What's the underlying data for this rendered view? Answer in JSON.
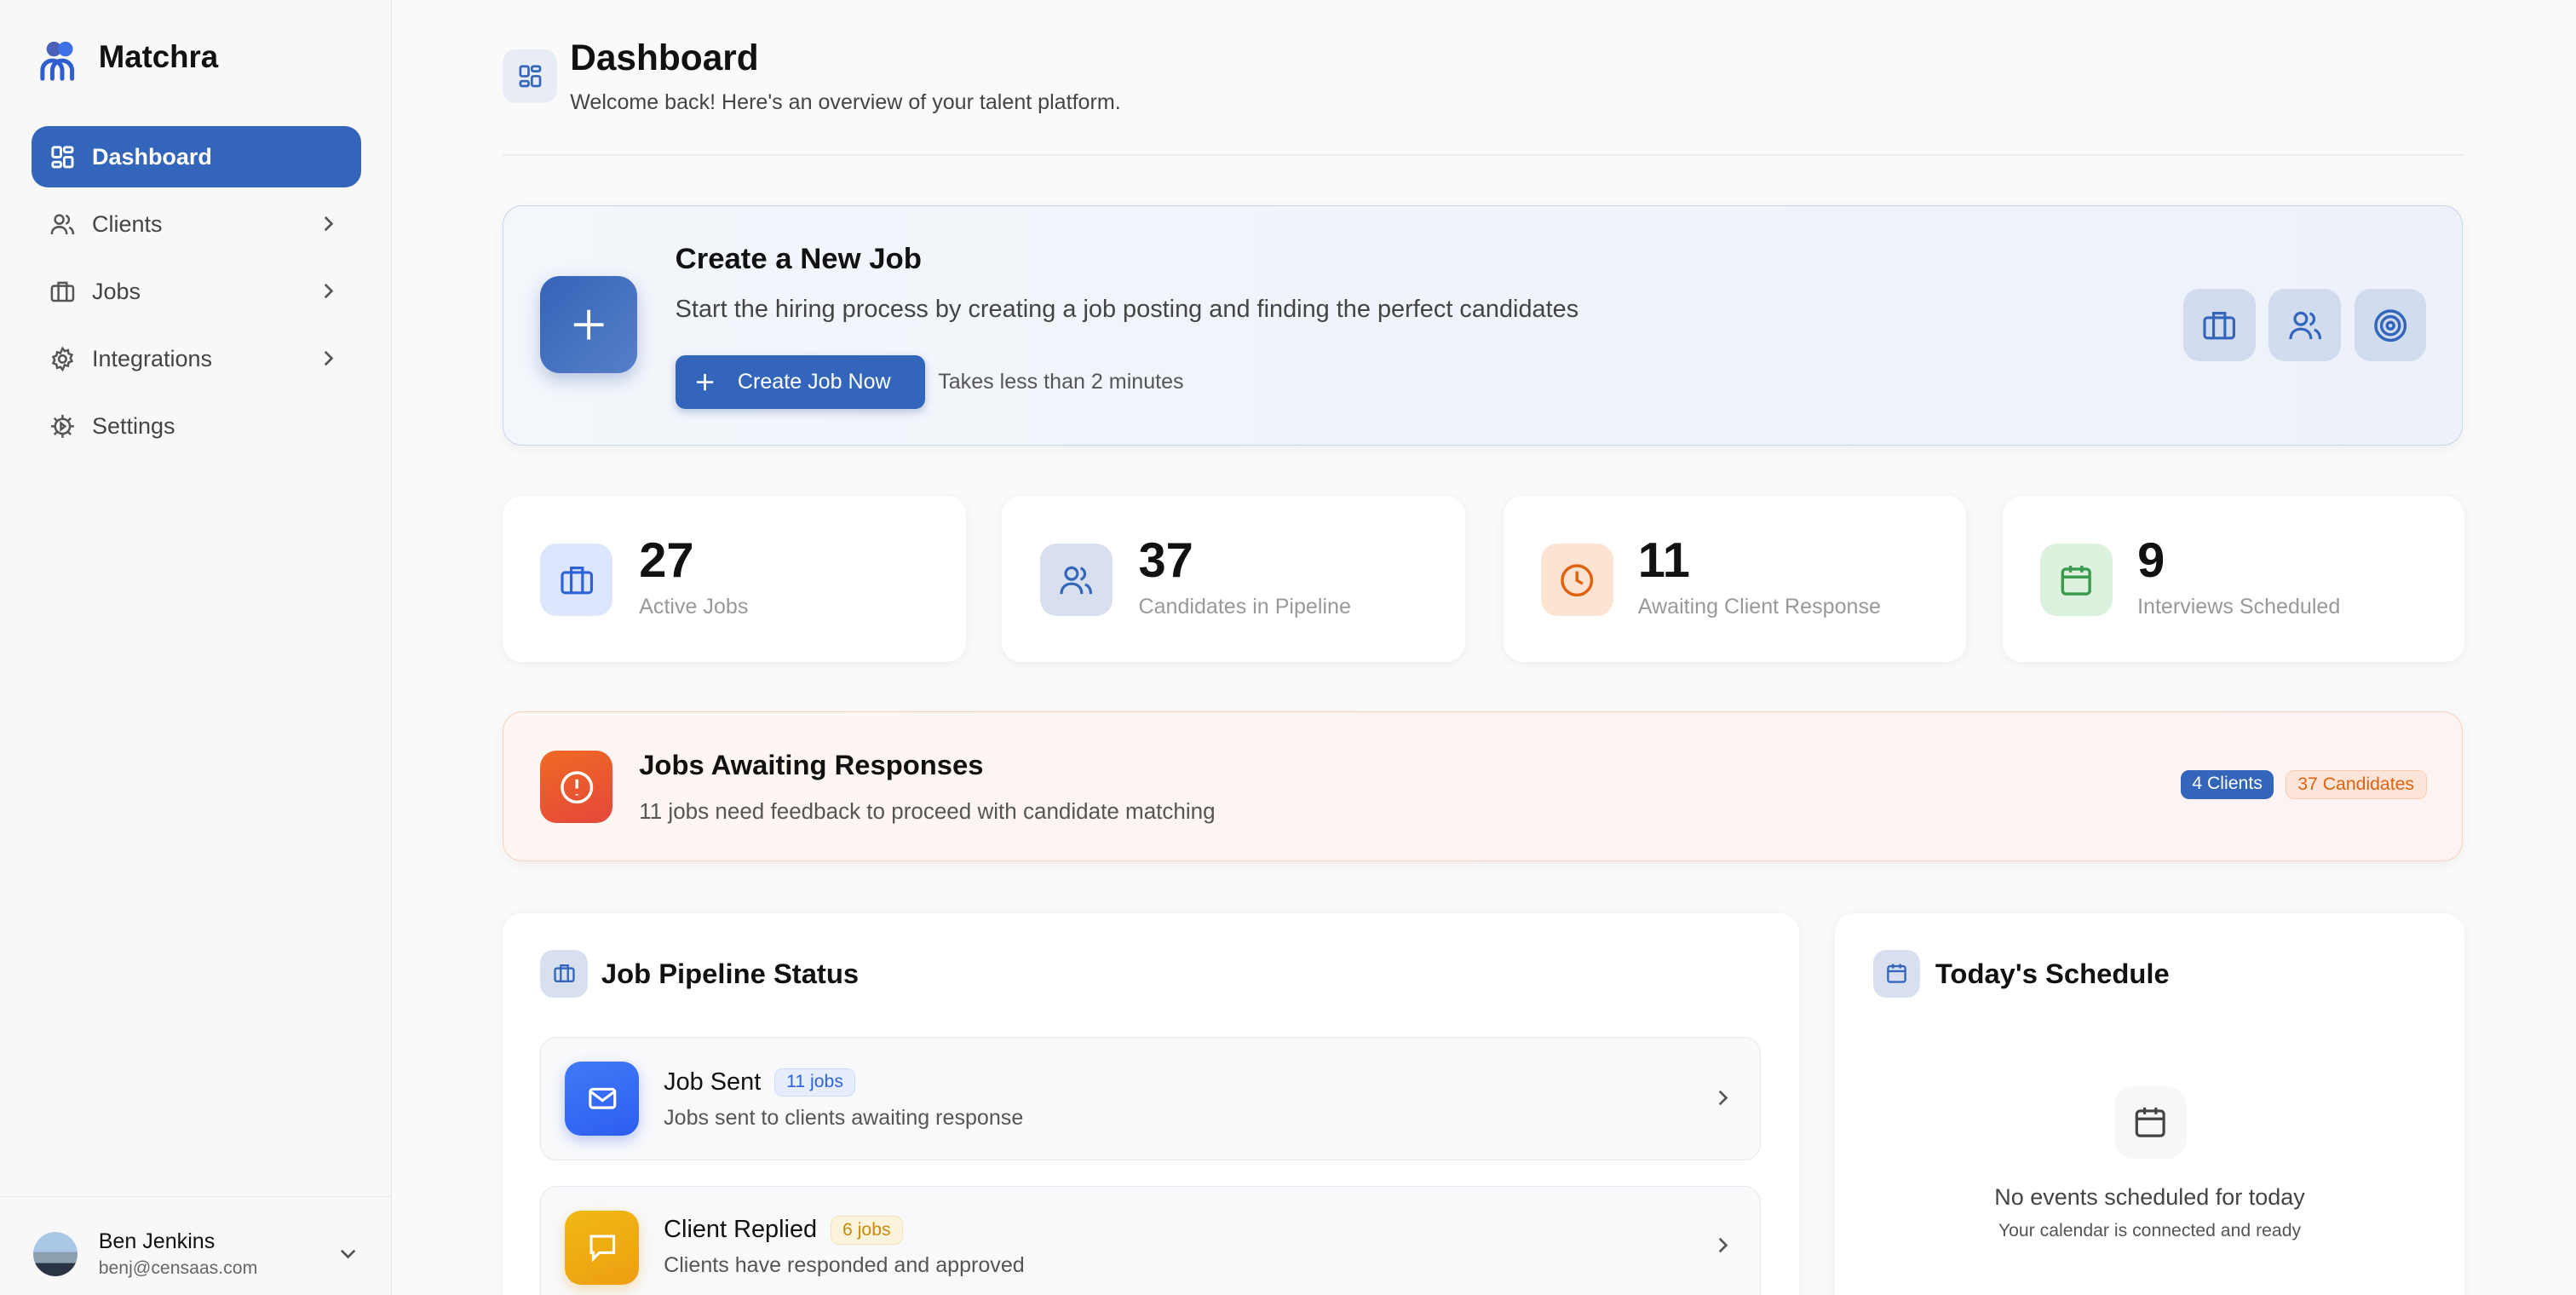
{
  "app": {
    "name": "Matchra"
  },
  "sidebar": {
    "items": [
      {
        "label": "Dashboard",
        "icon": "grid-icon",
        "active": true
      },
      {
        "label": "Clients",
        "icon": "users-icon",
        "has_submenu": true
      },
      {
        "label": "Jobs",
        "icon": "briefcase-icon",
        "has_submenu": true
      },
      {
        "label": "Integrations",
        "icon": "gear-icon",
        "has_submenu": true
      },
      {
        "label": "Settings",
        "icon": "settings-icon"
      }
    ]
  },
  "user": {
    "name": "Ben Jenkins",
    "email": "benj@censaas.com"
  },
  "header": {
    "title": "Dashboard",
    "subtitle": "Welcome back! Here's an overview of your talent platform."
  },
  "create_job": {
    "title": "Create a New Job",
    "description": "Start the hiring process by creating a job posting and finding the perfect candidates",
    "button": "Create Job Now",
    "hint": "Takes less than 2 minutes"
  },
  "stats": [
    {
      "value": "27",
      "label": "Active Jobs",
      "color": "#2f62d9"
    },
    {
      "value": "37",
      "label": "Candidates in Pipeline",
      "color": "#3366bb"
    },
    {
      "value": "11",
      "label": "Awaiting Client Response",
      "color": "#e0620e"
    },
    {
      "value": "9",
      "label": "Interviews Scheduled",
      "color": "#3a9a4e"
    }
  ],
  "alert": {
    "title": "Jobs Awaiting Responses",
    "description": "11 jobs need feedback to proceed with candidate matching",
    "badges": [
      "4 Clients",
      "37 Candidates"
    ]
  },
  "pipeline": {
    "title": "Job Pipeline Status",
    "rows": [
      {
        "title": "Job Sent",
        "badge": "11 jobs",
        "description": "Jobs sent to clients awaiting response",
        "color": "#3366ee"
      },
      {
        "title": "Client Replied",
        "badge": "6 jobs",
        "description": "Clients have responded and approved",
        "color": "#eeaa11"
      }
    ]
  },
  "schedule": {
    "title": "Today's Schedule",
    "empty_title": "No events scheduled for today",
    "empty_subtitle": "Your calendar is connected and ready"
  },
  "colors": {
    "primary": "#3366bb",
    "alert": "#ea5a2a"
  }
}
